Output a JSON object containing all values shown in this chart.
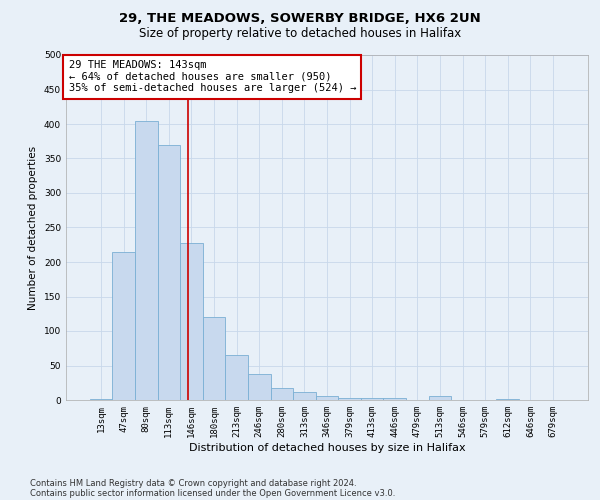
{
  "title1": "29, THE MEADOWS, SOWERBY BRIDGE, HX6 2UN",
  "title2": "Size of property relative to detached houses in Halifax",
  "xlabel": "Distribution of detached houses by size in Halifax",
  "ylabel": "Number of detached properties",
  "categories": [
    "13sqm",
    "47sqm",
    "80sqm",
    "113sqm",
    "146sqm",
    "180sqm",
    "213sqm",
    "246sqm",
    "280sqm",
    "313sqm",
    "346sqm",
    "379sqm",
    "413sqm",
    "446sqm",
    "479sqm",
    "513sqm",
    "546sqm",
    "579sqm",
    "612sqm",
    "646sqm",
    "679sqm"
  ],
  "values": [
    2,
    215,
    405,
    370,
    228,
    120,
    65,
    38,
    17,
    12,
    6,
    3,
    3,
    3,
    0,
    6,
    0,
    0,
    2,
    0,
    0
  ],
  "bar_color": "#c8d9ee",
  "bar_edge_color": "#7aafd4",
  "vline_color": "#cc0000",
  "annotation_text": "29 THE MEADOWS: 143sqm\n← 64% of detached houses are smaller (950)\n35% of semi-detached houses are larger (524) →",
  "annotation_box_color": "#ffffff",
  "annotation_box_edge_color": "#cc0000",
  "ylim": [
    0,
    500
  ],
  "yticks": [
    0,
    50,
    100,
    150,
    200,
    250,
    300,
    350,
    400,
    450,
    500
  ],
  "grid_color": "#c8d8ea",
  "background_color": "#e8f0f8",
  "footer1": "Contains HM Land Registry data © Crown copyright and database right 2024.",
  "footer2": "Contains public sector information licensed under the Open Government Licence v3.0.",
  "title1_fontsize": 9.5,
  "title2_fontsize": 8.5,
  "xlabel_fontsize": 8,
  "ylabel_fontsize": 7.5,
  "tick_fontsize": 6.5,
  "annotation_fontsize": 7.5,
  "footer_fontsize": 6
}
